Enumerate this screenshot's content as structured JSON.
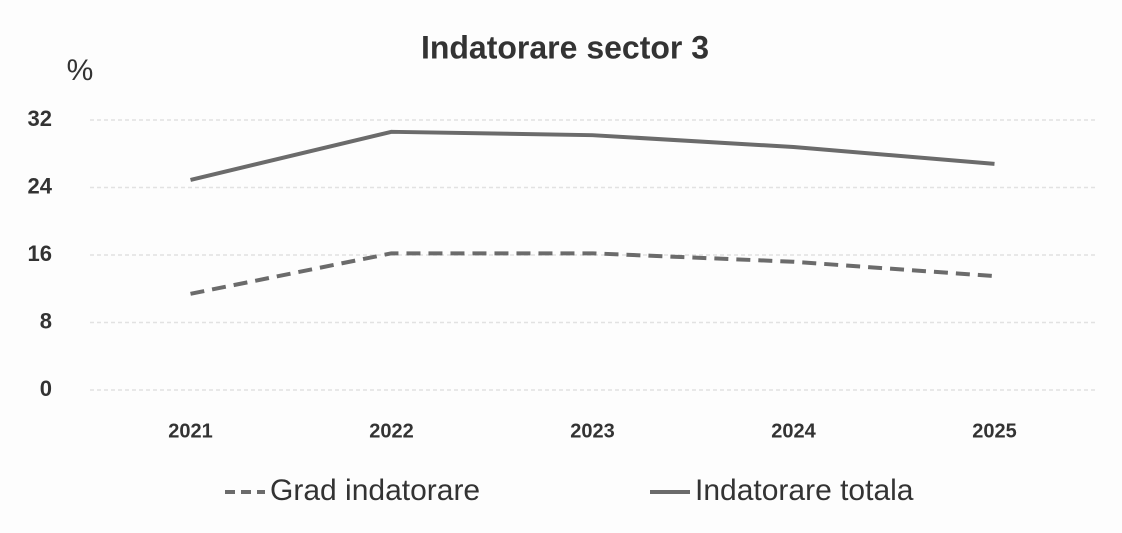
{
  "chart_data": {
    "type": "line",
    "title": "Indatorare sector 3",
    "y_label": "%",
    "categories": [
      "2021",
      "2022",
      "2023",
      "2024",
      "2025"
    ],
    "series": [
      {
        "name": "Grad indatorare",
        "color": "#6b6b6b",
        "dash": true,
        "values": [
          11.4,
          16.2,
          16.2,
          15.2,
          13.5
        ]
      },
      {
        "name": "Indatorare totala",
        "color": "#6b6b6b",
        "dash": false,
        "values": [
          24.9,
          30.6,
          30.2,
          28.8,
          26.8
        ]
      }
    ],
    "ylim": [
      0,
      32
    ],
    "yticks": [
      0,
      8,
      16,
      24,
      32
    ],
    "grid": true,
    "legend": "bottom"
  }
}
